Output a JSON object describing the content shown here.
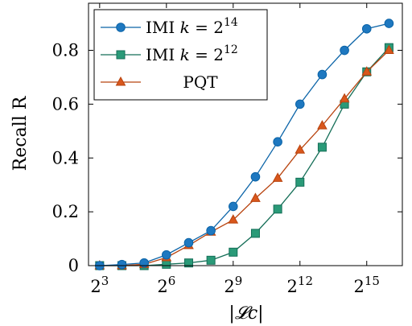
{
  "chart_data": {
    "type": "line",
    "title": "",
    "xlabel": "|𝓛c|",
    "ylabel": "Recall R",
    "x": [
      3,
      4,
      5,
      6,
      7,
      8,
      9,
      10,
      11,
      12,
      13,
      14,
      15,
      16
    ],
    "xticks": [
      {
        "value": 3,
        "base": "2",
        "exp": "3"
      },
      {
        "value": 6,
        "base": "2",
        "exp": "6"
      },
      {
        "value": 9,
        "base": "2",
        "exp": "9"
      },
      {
        "value": 12,
        "base": "2",
        "exp": "12"
      },
      {
        "value": 15,
        "base": "2",
        "exp": "15"
      }
    ],
    "yticks": [
      "0",
      "0.2",
      "0.4",
      "0.6",
      "0.8"
    ],
    "ytick_values": [
      0,
      0.2,
      0.4,
      0.6,
      0.8
    ],
    "xlim": [
      2.5,
      16.6
    ],
    "ylim": [
      0,
      0.975
    ],
    "legend_position": "top-left",
    "series": [
      {
        "name": "IMI k = 2^14",
        "label_prefix": "IMI ",
        "label_k": "k",
        "label_eq": " = 2",
        "label_exp": "14",
        "marker": "circle",
        "color": "#0b64a8",
        "fill": "#1e78c0",
        "values": [
          0.0,
          0.004,
          0.01,
          0.04,
          0.085,
          0.13,
          0.22,
          0.33,
          0.46,
          0.6,
          0.71,
          0.8,
          0.88,
          0.9
        ]
      },
      {
        "name": "IMI k = 2^12",
        "label_prefix": "IMI ",
        "label_k": "k",
        "label_eq": " = 2",
        "label_exp": "12",
        "marker": "square",
        "color": "#146e57",
        "fill": "#2a9a78",
        "values": [
          0.0,
          0.0,
          0.0,
          0.005,
          0.01,
          0.02,
          0.05,
          0.12,
          0.21,
          0.31,
          0.44,
          0.6,
          0.72,
          0.81
        ]
      },
      {
        "name": "PQT",
        "label_prefix": "PQT",
        "label_k": "",
        "label_eq": "",
        "label_exp": "",
        "marker": "triangle",
        "color": "#b8430e",
        "fill": "#d9571c",
        "values": [
          0.0,
          0.0,
          0.005,
          0.03,
          0.075,
          0.125,
          0.17,
          0.25,
          0.325,
          0.43,
          0.52,
          0.62,
          0.72,
          0.8
        ]
      }
    ]
  }
}
